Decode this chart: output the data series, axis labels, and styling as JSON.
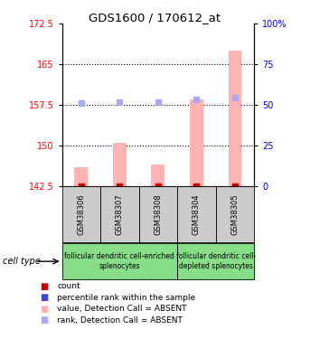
{
  "title": "GDS1600 / 170612_at",
  "samples": [
    "GSM38306",
    "GSM38307",
    "GSM38308",
    "GSM38304",
    "GSM38305"
  ],
  "bar_values": [
    146.0,
    150.5,
    146.5,
    158.5,
    167.5
  ],
  "rank_values": [
    51.5,
    52.0,
    51.8,
    53.5,
    54.5
  ],
  "bar_color": "#ffb3b3",
  "rank_color": "#aaaaee",
  "count_color": "#cc0000",
  "blue_color": "#4444cc",
  "ylim_left": [
    142.5,
    172.5
  ],
  "ylim_right": [
    0,
    100
  ],
  "yticks_left": [
    142.5,
    150.0,
    157.5,
    165.0,
    172.5
  ],
  "ytick_labels_left": [
    "142.5",
    "150",
    "157.5",
    "165",
    "172.5"
  ],
  "yticks_right": [
    0,
    25,
    50,
    75,
    100
  ],
  "ytick_labels_right": [
    "0",
    "25",
    "50",
    "75",
    "100%"
  ],
  "group1_label": "follicular dendritic cell-enriched\nsplenocytes",
  "group2_label": "follicular dendritic cell-\ndepleted splenocytes",
  "cell_type_label": "cell type",
  "group1_color": "#88dd88",
  "group2_color": "#88dd88",
  "sample_bg": "#cccccc",
  "legend_labels": [
    "count",
    "percentile rank within the sample",
    "value, Detection Call = ABSENT",
    "rank, Detection Call = ABSENT"
  ],
  "legend_colors": [
    "#cc0000",
    "#4444cc",
    "#ffb3b3",
    "#aaaaee"
  ],
  "dotted_gridlines": [
    150.0,
    157.5,
    165.0
  ],
  "bar_width": 0.35
}
